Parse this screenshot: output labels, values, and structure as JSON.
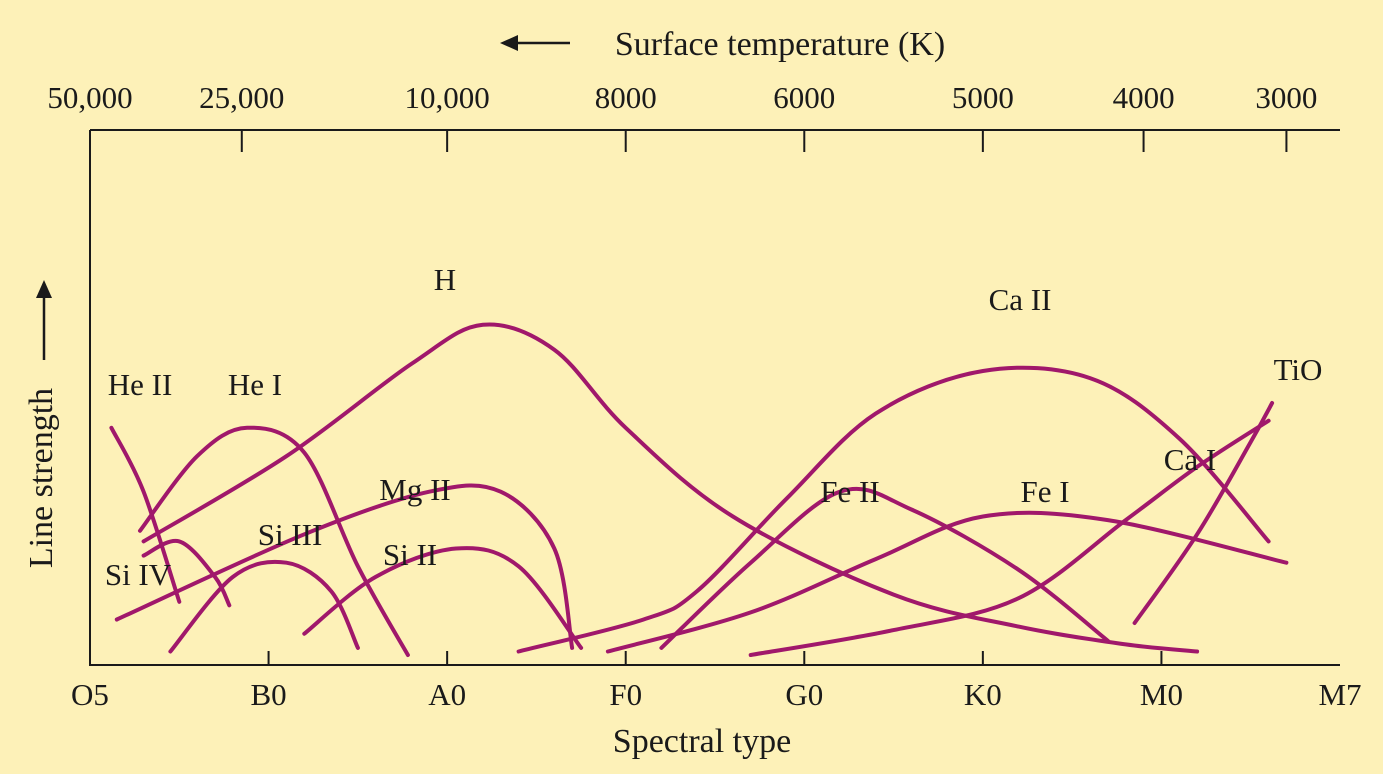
{
  "chart_data": {
    "type": "line",
    "xlabel": "Spectral type",
    "ylabel": "Line strength",
    "x2label": "Surface temperature (K)",
    "categories": [
      "O5",
      "B0",
      "A0",
      "F0",
      "G0",
      "K0",
      "M0",
      "M7"
    ],
    "top_ticks": [
      {
        "label": "50,000",
        "x": 0.0
      },
      {
        "label": "25,000",
        "x": 0.85
      },
      {
        "label": "10,000",
        "x": 2.0
      },
      {
        "label": "8000",
        "x": 3.0
      },
      {
        "label": "6000",
        "x": 4.0
      },
      {
        "label": "5000",
        "x": 5.0
      },
      {
        "label": "4000",
        "x": 5.9
      },
      {
        "label": "3000",
        "x": 6.7
      }
    ],
    "grid": false,
    "legend": "none",
    "color": "#a0186b",
    "series": [
      {
        "name": "He II",
        "points": [
          [
            0.12,
            0.64
          ],
          [
            0.3,
            0.46
          ],
          [
            0.5,
            0.15
          ]
        ]
      },
      {
        "name": "He I",
        "points": [
          [
            0.28,
            0.35
          ],
          [
            0.6,
            0.56
          ],
          [
            0.88,
            0.64
          ],
          [
            1.2,
            0.57
          ],
          [
            1.5,
            0.25
          ],
          [
            1.78,
            0.0
          ]
        ]
      },
      {
        "name": "H",
        "points": [
          [
            0.3,
            0.32
          ],
          [
            1.1,
            0.56
          ],
          [
            1.8,
            0.82
          ],
          [
            2.2,
            0.93
          ],
          [
            2.6,
            0.86
          ],
          [
            3.0,
            0.64
          ],
          [
            3.6,
            0.39
          ],
          [
            4.5,
            0.17
          ],
          [
            5.2,
            0.08
          ],
          [
            5.8,
            0.03
          ],
          [
            6.2,
            0.01
          ]
        ]
      },
      {
        "name": "Si IV",
        "points": [
          [
            0.3,
            0.28
          ],
          [
            0.5,
            0.32
          ],
          [
            0.7,
            0.22
          ],
          [
            0.78,
            0.14
          ]
        ]
      },
      {
        "name": "Si III",
        "points": [
          [
            0.45,
            0.01
          ],
          [
            0.8,
            0.22
          ],
          [
            1.1,
            0.26
          ],
          [
            1.35,
            0.18
          ],
          [
            1.5,
            0.02
          ]
        ]
      },
      {
        "name": "Mg II",
        "points": [
          [
            0.15,
            0.1
          ],
          [
            1.2,
            0.34
          ],
          [
            1.9,
            0.46
          ],
          [
            2.3,
            0.46
          ],
          [
            2.6,
            0.3
          ],
          [
            2.7,
            0.02
          ]
        ]
      },
      {
        "name": "Si II",
        "points": [
          [
            1.2,
            0.06
          ],
          [
            1.6,
            0.22
          ],
          [
            2.05,
            0.3
          ],
          [
            2.4,
            0.25
          ],
          [
            2.75,
            0.02
          ]
        ]
      },
      {
        "name": "Ca II",
        "points": [
          [
            2.4,
            0.01
          ],
          [
            3.1,
            0.1
          ],
          [
            3.4,
            0.18
          ],
          [
            3.9,
            0.44
          ],
          [
            4.4,
            0.68
          ],
          [
            5.0,
            0.8
          ],
          [
            5.6,
            0.78
          ],
          [
            6.1,
            0.61
          ],
          [
            6.6,
            0.32
          ]
        ]
      },
      {
        "name": "Fe II",
        "points": [
          [
            3.2,
            0.02
          ],
          [
            3.7,
            0.26
          ],
          [
            4.2,
            0.46
          ],
          [
            4.6,
            0.41
          ],
          [
            5.2,
            0.24
          ],
          [
            5.7,
            0.04
          ]
        ]
      },
      {
        "name": "Fe I",
        "points": [
          [
            2.9,
            0.01
          ],
          [
            3.7,
            0.12
          ],
          [
            4.4,
            0.27
          ],
          [
            5.0,
            0.39
          ],
          [
            5.7,
            0.38
          ],
          [
            6.7,
            0.26
          ]
        ]
      },
      {
        "name": "Ca I",
        "points": [
          [
            3.7,
            0.0
          ],
          [
            4.5,
            0.07
          ],
          [
            5.2,
            0.16
          ],
          [
            5.8,
            0.38
          ],
          [
            6.2,
            0.53
          ],
          [
            6.6,
            0.66
          ]
        ]
      },
      {
        "name": "TiO",
        "points": [
          [
            5.85,
            0.09
          ],
          [
            6.2,
            0.34
          ],
          [
            6.5,
            0.6
          ],
          [
            6.62,
            0.71
          ]
        ]
      }
    ]
  }
}
